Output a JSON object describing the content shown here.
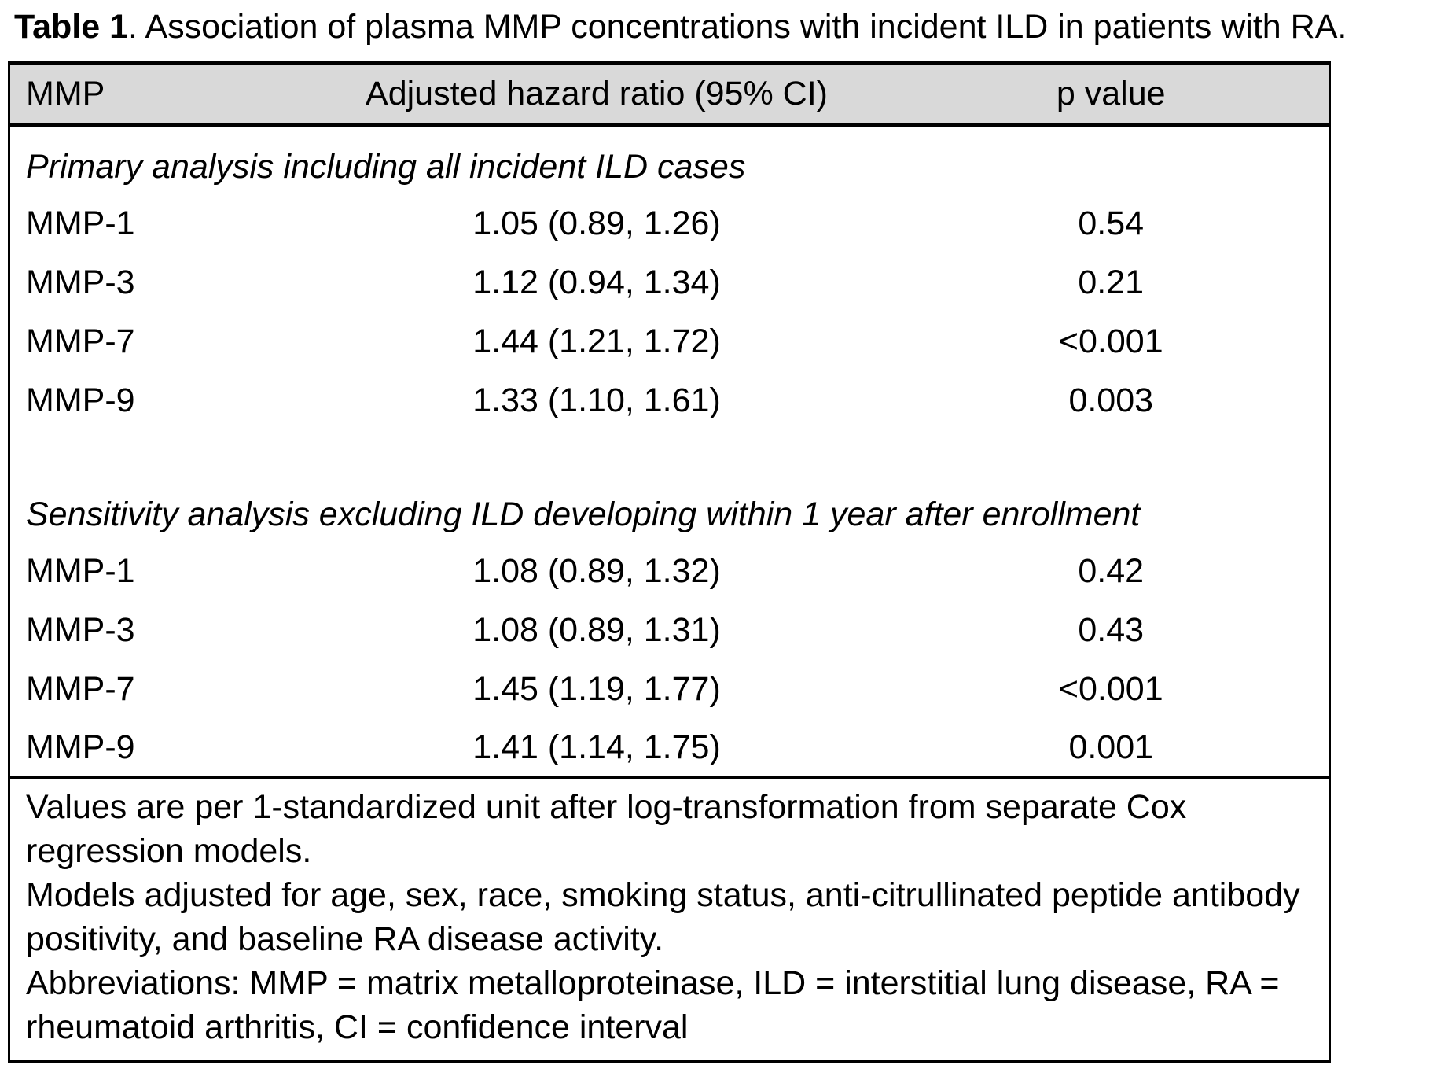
{
  "caption": {
    "label": "Table 1",
    "rest": ". Association of plasma MMP concentrations with incident ILD in patients with RA."
  },
  "table": {
    "columns": [
      "MMP",
      "Adjusted hazard ratio (95% CI)",
      "p value"
    ],
    "sections": [
      {
        "heading": "Primary analysis including all incident ILD cases",
        "rows": [
          {
            "mmp": "MMP-1",
            "hazard_ratio": "1.05 (0.89, 1.26)",
            "p_value": "0.54"
          },
          {
            "mmp": "MMP-3",
            "hazard_ratio": "1.12 (0.94, 1.34)",
            "p_value": "0.21"
          },
          {
            "mmp": "MMP-7",
            "hazard_ratio": "1.44 (1.21, 1.72)",
            "p_value": "<0.001"
          },
          {
            "mmp": "MMP-9",
            "hazard_ratio": "1.33 (1.10, 1.61)",
            "p_value": "0.003"
          }
        ]
      },
      {
        "heading": "Sensitivity analysis excluding ILD developing within 1 year after enrollment",
        "rows": [
          {
            "mmp": "MMP-1",
            "hazard_ratio": "1.08 (0.89, 1.32)",
            "p_value": "0.42"
          },
          {
            "mmp": "MMP-3",
            "hazard_ratio": "1.08 (0.89, 1.31)",
            "p_value": "0.43"
          },
          {
            "mmp": "MMP-7",
            "hazard_ratio": "1.45 (1.19, 1.77)",
            "p_value": "<0.001"
          },
          {
            "mmp": "MMP-9",
            "hazard_ratio": "1.41 (1.14, 1.75)",
            "p_value": "0.001"
          }
        ]
      }
    ],
    "footnotes": [
      "Values are per 1-standardized unit after log-transformation from separate Cox regression models.",
      "Models adjusted for age, sex, race, smoking status, anti-citrullinated peptide antibody positivity, and baseline RA disease activity.",
      "Abbreviations: MMP = matrix metalloproteinase, ILD = interstitial lung disease, RA = rheumatoid arthritis, CI = confidence interval"
    ]
  },
  "colors": {
    "header_bg": "#d9d9d9",
    "border": "#000000",
    "text": "#000000",
    "page_bg": "#ffffff"
  }
}
